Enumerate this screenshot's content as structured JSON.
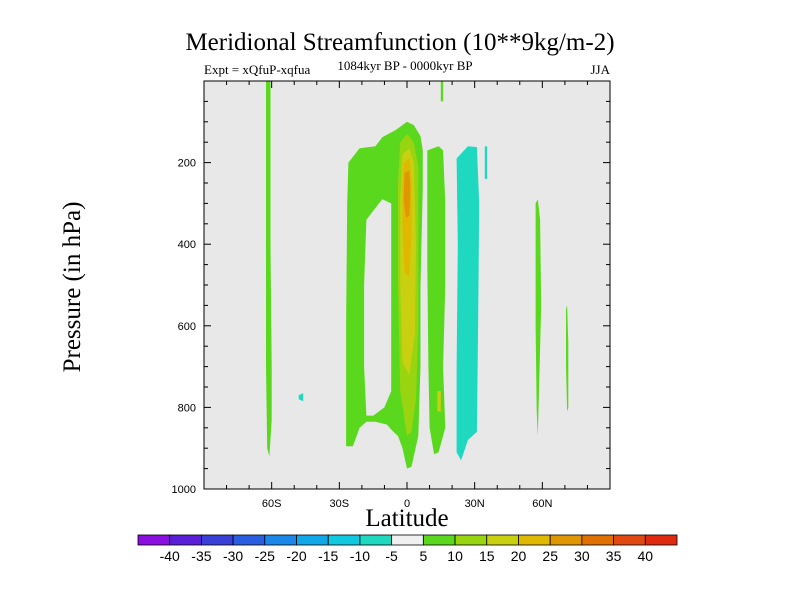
{
  "chart_data": {
    "type": "heatmap",
    "title": "Meridional Streamfunction (10**9kg/m-2)",
    "left_string": "Expt = xQfuP-xqfua",
    "center_string": "1084kyr BP - 0000kyr BP",
    "right_string": "JJA",
    "xlabel": "Latitude",
    "ylabel": "Pressure (in hPa)",
    "x_range": [
      -90,
      90
    ],
    "y_range": [
      0,
      1000
    ],
    "y_reversed": true,
    "x_ticks": [
      {
        "value": -60,
        "label": "60S"
      },
      {
        "value": -30,
        "label": "30S"
      },
      {
        "value": 0,
        "label": "0"
      },
      {
        "value": 30,
        "label": "30N"
      },
      {
        "value": 60,
        "label": "60N"
      }
    ],
    "y_ticks": [
      {
        "value": 200,
        "label": "200"
      },
      {
        "value": 400,
        "label": "400"
      },
      {
        "value": 600,
        "label": "600"
      },
      {
        "value": 800,
        "label": "800"
      },
      {
        "value": 1000,
        "label": "1000"
      }
    ],
    "missing_color": "#e8e8e8",
    "colorbar": {
      "labels": [
        "-40",
        "-35",
        "-30",
        "-25",
        "-20",
        "-15",
        "-10",
        "-5",
        "5",
        "10",
        "15",
        "20",
        "25",
        "30",
        "35",
        "40"
      ],
      "colors": [
        "#8a0fe0",
        "#5a20d8",
        "#3a3fd8",
        "#2a5ee0",
        "#1a88e8",
        "#10a8e8",
        "#10c8e0",
        "#1ed8c0",
        "#f0f0f0",
        "#5ad81e",
        "#98d410",
        "#c8d010",
        "#e0b800",
        "#e09600",
        "#e07000",
        "#e04a10",
        "#e02a10"
      ]
    },
    "regions": [
      {
        "name": "sh-60s-positive-band",
        "level": "5 to 10",
        "color": "#5ad81e",
        "points": [
          [
            -62.5,
            0
          ],
          [
            -60.5,
            0
          ],
          [
            -60.5,
            400
          ],
          [
            -60,
            700
          ],
          [
            -60,
            830
          ],
          [
            -61,
            920
          ],
          [
            -62,
            900
          ],
          [
            -62.5,
            700
          ],
          [
            -62.5,
            400
          ]
        ]
      },
      {
        "name": "sh-negative-spot",
        "level": "-5 to -10",
        "color": "#1ed8c0",
        "points": [
          [
            -48,
            770
          ],
          [
            -46,
            765
          ],
          [
            -46,
            785
          ],
          [
            -48,
            780
          ]
        ]
      },
      {
        "name": "central-positive-cell",
        "level": "5 to 10",
        "color": "#5ad81e",
        "points": [
          [
            -26,
            200
          ],
          [
            -21,
            165
          ],
          [
            -14,
            160
          ],
          [
            -11,
            138
          ],
          [
            -5,
            120
          ],
          [
            0,
            100
          ],
          [
            3,
            108
          ],
          [
            6,
            135
          ],
          [
            7,
            170
          ],
          [
            7,
            260
          ],
          [
            6,
            500
          ],
          [
            6,
            700
          ],
          [
            5,
            870
          ],
          [
            2,
            945
          ],
          [
            0,
            950
          ],
          [
            -2,
            900
          ],
          [
            -4,
            870
          ],
          [
            -6,
            860
          ],
          [
            -9,
            842
          ],
          [
            -14,
            835
          ],
          [
            -18,
            835
          ],
          [
            -21,
            850
          ],
          [
            -24,
            895
          ],
          [
            -27,
            895
          ],
          [
            -27,
            600
          ],
          [
            -26.5,
            300
          ]
        ]
      },
      {
        "name": "central-inner-gap",
        "level": "-5 to 5",
        "color": "#e8e8e8",
        "points": [
          [
            -18,
            340
          ],
          [
            -11,
            290
          ],
          [
            -7,
            300
          ],
          [
            -7,
            760
          ],
          [
            -10,
            800
          ],
          [
            -15,
            820
          ],
          [
            -18,
            820
          ],
          [
            -19,
            700
          ],
          [
            -19,
            500
          ]
        ]
      },
      {
        "name": "central-core-10-15",
        "level": "10 to 15",
        "color": "#98d410",
        "points": [
          [
            -3,
            150
          ],
          [
            0,
            130
          ],
          [
            3,
            150
          ],
          [
            5,
            210
          ],
          [
            5,
            600
          ],
          [
            4,
            780
          ],
          [
            2,
            860
          ],
          [
            0,
            870
          ],
          [
            -3,
            760
          ],
          [
            -4,
            500
          ],
          [
            -4,
            250
          ]
        ]
      },
      {
        "name": "central-core-15-20",
        "level": "15 to 20",
        "color": "#c8d010",
        "points": [
          [
            -2,
            180
          ],
          [
            1,
            165
          ],
          [
            3,
            200
          ],
          [
            4,
            400
          ],
          [
            3.5,
            620
          ],
          [
            1,
            720
          ],
          [
            -2,
            690
          ],
          [
            -3,
            500
          ],
          [
            -3,
            300
          ]
        ]
      },
      {
        "name": "central-core-20-25",
        "level": "20 to 25",
        "color": "#e0b800",
        "points": [
          [
            -1.5,
            200
          ],
          [
            1,
            190
          ],
          [
            2,
            240
          ],
          [
            2,
            370
          ],
          [
            1,
            480
          ],
          [
            -1,
            470
          ],
          [
            -2,
            370
          ],
          [
            -2,
            250
          ]
        ]
      },
      {
        "name": "central-core-25-30",
        "level": "25 to 30",
        "color": "#e09600",
        "points": [
          [
            -1,
            225
          ],
          [
            1,
            220
          ],
          [
            1.5,
            265
          ],
          [
            1,
            330
          ],
          [
            -0.5,
            335
          ],
          [
            -1.5,
            290
          ]
        ]
      },
      {
        "name": "nh-positive-strip",
        "level": "5 to 10",
        "color": "#5ad81e",
        "points": [
          [
            9,
            170
          ],
          [
            14,
            160
          ],
          [
            16,
            170
          ],
          [
            17,
            300
          ],
          [
            17,
            500
          ],
          [
            16,
            700
          ],
          [
            17,
            850
          ],
          [
            14,
            910
          ],
          [
            12,
            915
          ],
          [
            10,
            850
          ],
          [
            9.5,
            700
          ],
          [
            9,
            450
          ]
        ]
      },
      {
        "name": "nh-strip-orange-spot",
        "level": "15 to 20",
        "color": "#c8d010",
        "points": [
          [
            13.5,
            760
          ],
          [
            15,
            760
          ],
          [
            15,
            810
          ],
          [
            13.5,
            810
          ]
        ]
      },
      {
        "name": "top-green-stub",
        "level": "5 to 10",
        "color": "#5ad81e",
        "points": [
          [
            15,
            0
          ],
          [
            16,
            0
          ],
          [
            16,
            50
          ],
          [
            15,
            50
          ]
        ]
      },
      {
        "name": "nh-negative-cell",
        "level": "-5 to -10",
        "color": "#1ed8c0",
        "points": [
          [
            22,
            190
          ],
          [
            27,
            160
          ],
          [
            31,
            162
          ],
          [
            32,
            300
          ],
          [
            31.5,
            600
          ],
          [
            31,
            860
          ],
          [
            27,
            880
          ],
          [
            24,
            930
          ],
          [
            22,
            910
          ],
          [
            22,
            700
          ],
          [
            22.5,
            400
          ]
        ]
      },
      {
        "name": "nh-negative-small",
        "level": "-5 to -10",
        "color": "#1ed8c0",
        "points": [
          [
            34.5,
            160
          ],
          [
            35.5,
            160
          ],
          [
            35.5,
            240
          ],
          [
            34.5,
            240
          ]
        ]
      },
      {
        "name": "nh-60n-positive-band",
        "level": "5 to 10",
        "color": "#5ad81e",
        "points": [
          [
            57,
            300
          ],
          [
            58,
            290
          ],
          [
            59,
            340
          ],
          [
            59.5,
            550
          ],
          [
            58.5,
            760
          ],
          [
            58,
            870
          ],
          [
            57.5,
            810
          ],
          [
            57,
            600
          ]
        ]
      },
      {
        "name": "nh-70n-positive-band",
        "level": "5 to 10",
        "color": "#5ad81e",
        "points": [
          [
            70.5,
            560
          ],
          [
            71,
            550
          ],
          [
            71.5,
            640
          ],
          [
            71.5,
            800
          ],
          [
            71,
            810
          ],
          [
            70.5,
            700
          ]
        ]
      }
    ]
  }
}
